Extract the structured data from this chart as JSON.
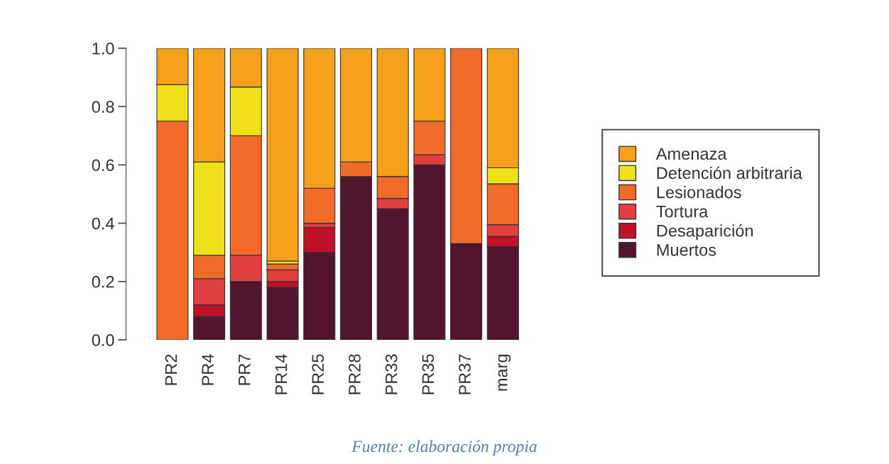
{
  "chart_data": {
    "type": "bar",
    "stacked": true,
    "categories": [
      "PR2",
      "PR4",
      "PR7",
      "PR14",
      "PR25",
      "PR28",
      "PR33",
      "PR35",
      "PR37",
      "marg"
    ],
    "series": [
      {
        "name": "Muertos",
        "color": "#521530",
        "values": [
          0,
          0.08,
          0.2,
          0.18,
          0.3,
          0.56,
          0.45,
          0.6,
          0.33,
          0.32
        ]
      },
      {
        "name": "Desaparición",
        "color": "#c0102a",
        "values": [
          0,
          0.04,
          0,
          0.02,
          0.085,
          0,
          0,
          0,
          0,
          0.035
        ]
      },
      {
        "name": "Tortura",
        "color": "#e04040",
        "values": [
          0,
          0.09,
          0.09,
          0.04,
          0.015,
          0,
          0.035,
          0.035,
          0,
          0.04
        ]
      },
      {
        "name": "Lesionados",
        "color": "#f06a2a",
        "values": [
          0.75,
          0.08,
          0.41,
          0.02,
          0.12,
          0.05,
          0.075,
          0.115,
          0.67,
          0.14
        ]
      },
      {
        "name": "Detención arbitraria",
        "color": "#f0e01a",
        "values": [
          0.125,
          0.32,
          0.167,
          0.01,
          0,
          0,
          0,
          0,
          0,
          0.055
        ]
      },
      {
        "name": "Amenaza",
        "color": "#f5a01a",
        "values": [
          0.125,
          0.39,
          0.133,
          0.73,
          0.48,
          0.39,
          0.44,
          0.25,
          0,
          0.41
        ]
      }
    ],
    "ylim": [
      0,
      1
    ],
    "yticks": [
      {
        "value": 0,
        "label": "0.0"
      },
      {
        "value": 0.2,
        "label": "0.2"
      },
      {
        "value": 0.4,
        "label": "0.4"
      },
      {
        "value": 0.6,
        "label": "0.6"
      },
      {
        "value": 0.8,
        "label": "0.8"
      },
      {
        "value": 1,
        "label": "1.0"
      }
    ],
    "legend": "right",
    "annotations": [
      "Fuente: elaboración propia"
    ]
  }
}
